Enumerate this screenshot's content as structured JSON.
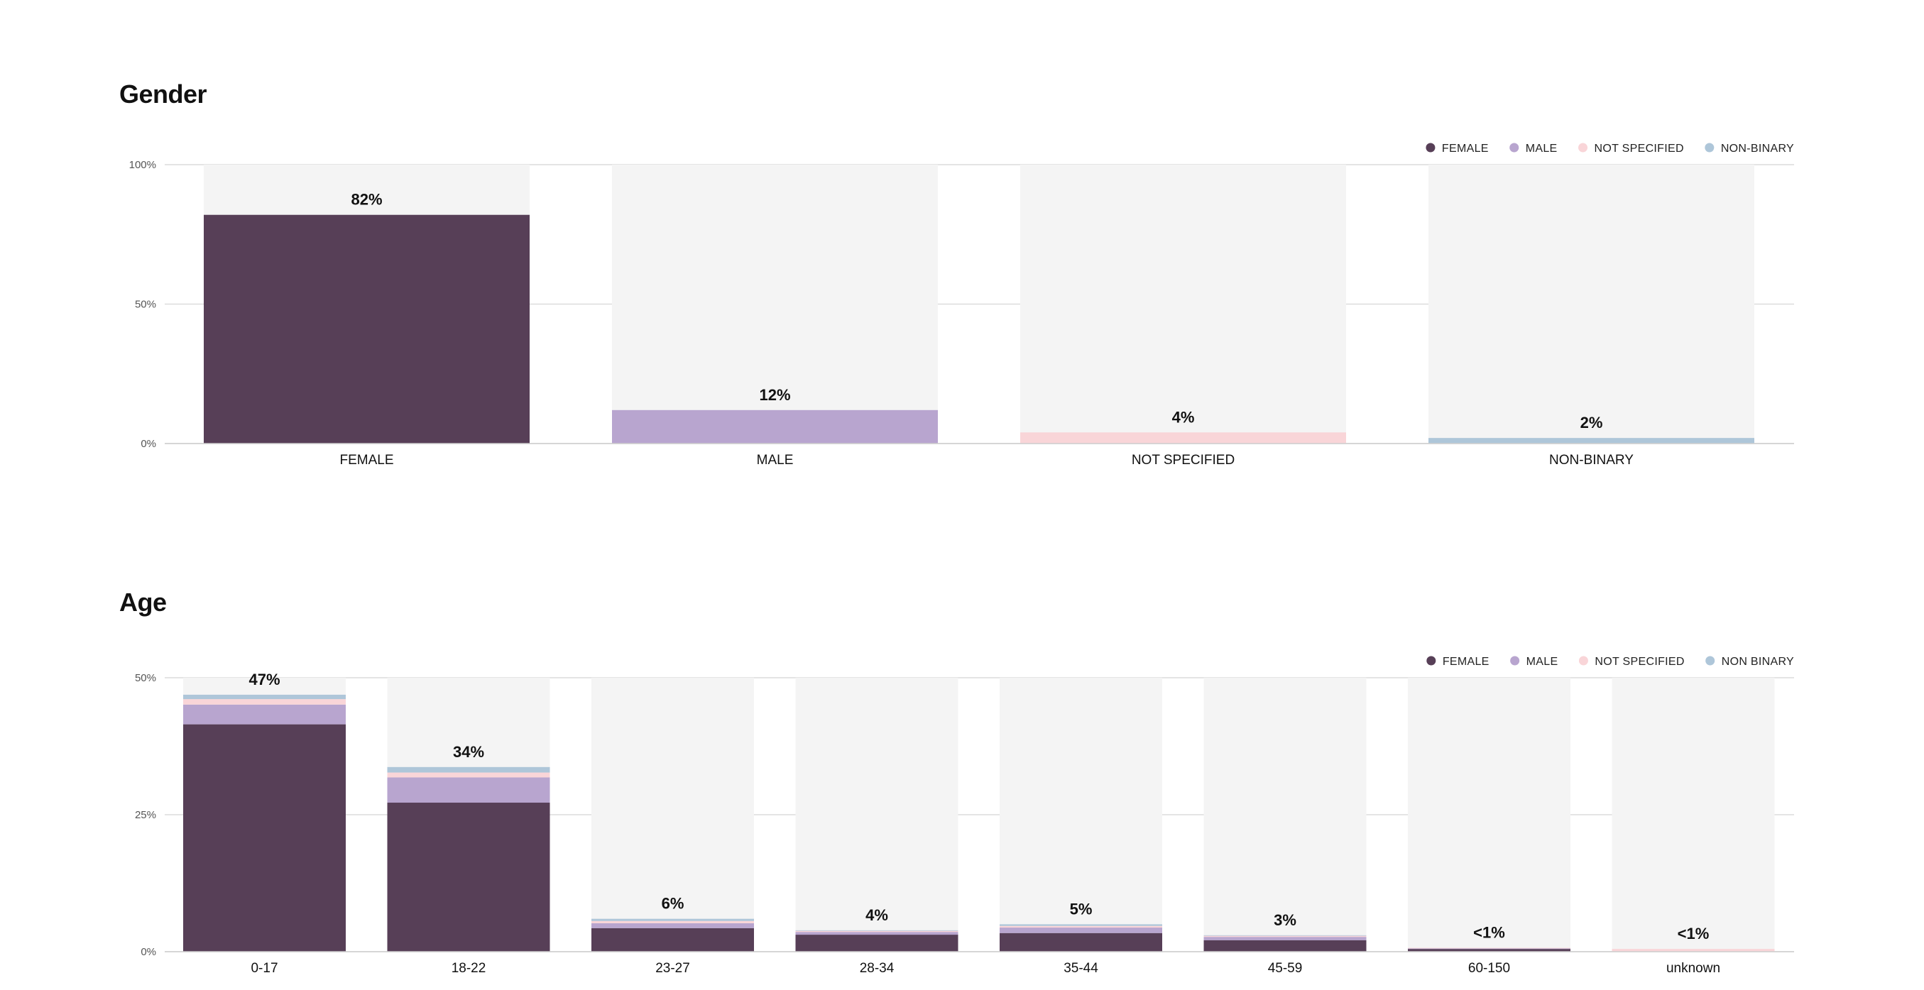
{
  "chart_data": [
    {
      "type": "bar",
      "title": "Gender",
      "categories": [
        "FEMALE",
        "MALE",
        "NOT SPECIFIED",
        "NON-BINARY"
      ],
      "values": [
        82,
        12,
        4,
        2
      ],
      "data_labels": [
        "82%",
        "12%",
        "4%",
        "2%"
      ],
      "colors": [
        "#573f57",
        "#b8a5cf",
        "#f9d5d8",
        "#aec6d9"
      ],
      "legend": [
        {
          "name": "FEMALE",
          "color": "#573f57"
        },
        {
          "name": "MALE",
          "color": "#b8a5cf"
        },
        {
          "name": "NOT SPECIFIED",
          "color": "#f9d5d8"
        },
        {
          "name": "NON-BINARY",
          "color": "#aec6d9"
        }
      ],
      "legend_position": "top-right",
      "ylim": [
        0,
        100
      ],
      "yticks": [
        "0%",
        "50%",
        "100%"
      ],
      "ytick_values": [
        0,
        50,
        100
      ],
      "grid": true
    },
    {
      "type": "bar",
      "stacked": true,
      "title": "Age",
      "categories": [
        "0-17",
        "18-22",
        "23-27",
        "28-34",
        "35-44",
        "45-59",
        "60-150",
        "unknown"
      ],
      "series": [
        {
          "name": "FEMALE",
          "color": "#573f57",
          "values": [
            41.5,
            27.2,
            4.3,
            3.1,
            3.4,
            2.1,
            0.5,
            0
          ]
        },
        {
          "name": "MALE",
          "color": "#b8a5cf",
          "values": [
            3.6,
            4.6,
            0.9,
            0.5,
            1.0,
            0.6,
            0.1,
            0
          ]
        },
        {
          "name": "NOT SPECIFIED",
          "color": "#f9d5d8",
          "values": [
            1.0,
            0.9,
            0.4,
            0.2,
            0.3,
            0.2,
            0.1,
            0.5
          ]
        },
        {
          "name": "NON BINARY",
          "color": "#aec6d9",
          "values": [
            0.8,
            1.0,
            0.4,
            0.1,
            0.3,
            0.1,
            0.0,
            0
          ]
        }
      ],
      "data_labels": [
        "47%",
        "34%",
        "6%",
        "4%",
        "5%",
        "3%",
        "<1%",
        "<1%"
      ],
      "legend_position": "top-right",
      "ylim": [
        0,
        50
      ],
      "yticks": [
        "0%",
        "25%",
        "50%"
      ],
      "ytick_values": [
        0,
        25,
        50
      ],
      "grid": true
    }
  ]
}
